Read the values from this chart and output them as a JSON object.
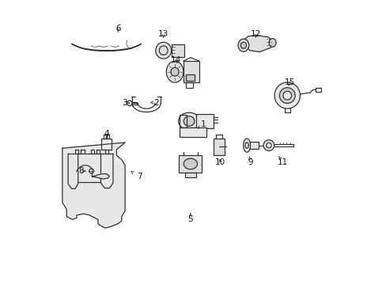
{
  "background_color": "#ffffff",
  "line_color": "#333333",
  "figsize": [
    4.89,
    3.6
  ],
  "dpi": 100,
  "labels": {
    "1": [
      0.535,
      0.565,
      0.515,
      0.548
    ],
    "2": [
      0.37,
      0.64,
      0.348,
      0.64
    ],
    "3": [
      0.258,
      0.64,
      0.278,
      0.638
    ],
    "4": [
      0.195,
      0.53,
      0.195,
      0.51
    ],
    "5": [
      0.49,
      0.23,
      0.49,
      0.252
    ],
    "6": [
      0.235,
      0.9,
      0.235,
      0.88
    ],
    "7": [
      0.31,
      0.38,
      0.28,
      0.4
    ],
    "8": [
      0.105,
      0.4,
      0.13,
      0.4
    ],
    "9": [
      0.7,
      0.43,
      0.697,
      0.452
    ],
    "10": [
      0.595,
      0.43,
      0.59,
      0.45
    ],
    "11": [
      0.815,
      0.43,
      0.8,
      0.452
    ],
    "12": [
      0.72,
      0.88,
      0.718,
      0.86
    ],
    "13": [
      0.395,
      0.88,
      0.395,
      0.86
    ],
    "14": [
      0.44,
      0.79,
      0.445,
      0.77
    ],
    "15": [
      0.84,
      0.71,
      0.83,
      0.692
    ]
  }
}
